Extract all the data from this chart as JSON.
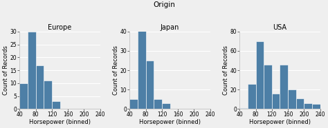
{
  "title": "Origin",
  "subplots": [
    {
      "title": "Europe",
      "bin_edges": [
        40,
        60,
        80,
        100,
        120,
        140
      ],
      "counts": [
        10,
        30,
        17,
        11,
        3
      ],
      "ylim": [
        0,
        30
      ],
      "yticks": [
        0,
        5,
        10,
        15,
        20,
        25,
        30
      ]
    },
    {
      "title": "Japan",
      "bin_edges": [
        40,
        60,
        80,
        100,
        120,
        140
      ],
      "counts": [
        5,
        41,
        25,
        5,
        3
      ],
      "ylim": [
        0,
        40
      ],
      "yticks": [
        0,
        10,
        20,
        30,
        40
      ]
    },
    {
      "title": "USA",
      "bin_edges": [
        40,
        60,
        80,
        100,
        120,
        140,
        160,
        180,
        200,
        220,
        240
      ],
      "counts": [
        1,
        26,
        70,
        46,
        16,
        46,
        20,
        11,
        6,
        5
      ],
      "ylim": [
        0,
        80
      ],
      "yticks": [
        0,
        20,
        40,
        60,
        80
      ]
    }
  ],
  "bar_color": "#4d7fa6",
  "bar_edge_color": "white",
  "xlabel": "Horsepower (binned)",
  "ylabel": "Count of Records",
  "xlim": [
    40,
    240
  ],
  "xticks": [
    40,
    80,
    120,
    160,
    200,
    240
  ],
  "background_color": "#efefef",
  "grid_color": "white",
  "title_fontsize": 7.5,
  "subtitle_fontsize": 7,
  "axis_fontsize": 6,
  "tick_fontsize": 5.5
}
